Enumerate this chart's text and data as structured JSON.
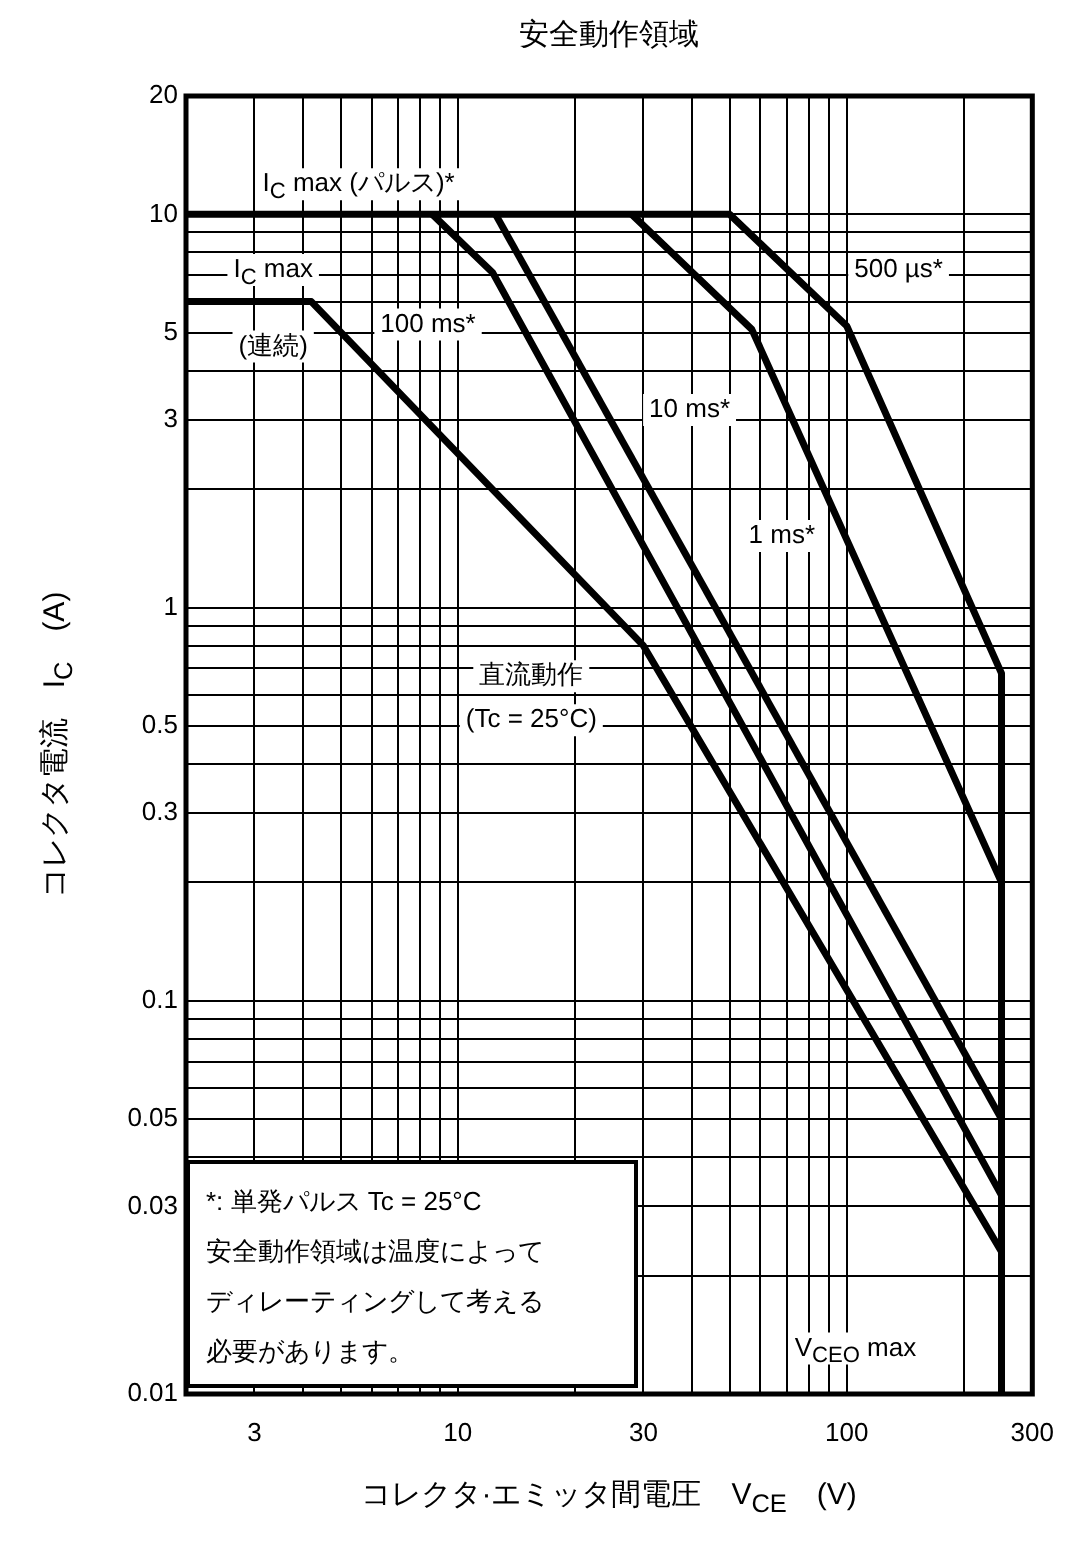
{
  "chart_data": {
    "type": "line",
    "title": "安全動作領域",
    "xlabel": "コレクタ·エミッタ間電圧　V$_{CE}$　(V)",
    "ylabel": "コレクタ電流　I$_{C}$　(A)",
    "log": "xy",
    "grid": true,
    "legend": false,
    "marker": "none",
    "line_style": "solid",
    "xlim": [
      2,
      300
    ],
    "ylim": [
      0.01,
      20
    ],
    "xticks": [
      {
        "value": 2,
        "label": null
      },
      3,
      {
        "value": 4,
        "label": null
      },
      {
        "value": 5,
        "label": null
      },
      {
        "value": 6,
        "label": null
      },
      {
        "value": 7,
        "label": null
      },
      {
        "value": 8,
        "label": null
      },
      {
        "value": 9,
        "label": null
      },
      10,
      {
        "value": 20,
        "label": null
      },
      30,
      {
        "value": 40,
        "label": null
      },
      {
        "value": 50,
        "label": null
      },
      {
        "value": 60,
        "label": null
      },
      {
        "value": 70,
        "label": null
      },
      {
        "value": 80,
        "label": null
      },
      {
        "value": 90,
        "label": null
      },
      100,
      {
        "value": 200,
        "label": null
      },
      300
    ],
    "yticks": [
      0.01,
      {
        "value": 0.02,
        "label": null
      },
      0.03,
      {
        "value": 0.04,
        "label": null
      },
      0.05,
      {
        "value": 0.06,
        "label": null
      },
      {
        "value": 0.07,
        "label": null
      },
      {
        "value": 0.08,
        "label": null
      },
      {
        "value": 0.09,
        "label": null
      },
      0.1,
      {
        "value": 0.2,
        "label": null
      },
      0.3,
      {
        "value": 0.4,
        "label": null
      },
      0.5,
      {
        "value": 0.6,
        "label": null
      },
      {
        "value": 0.7,
        "label": null
      },
      {
        "value": 0.8,
        "label": null
      },
      {
        "value": 0.9,
        "label": null
      },
      1,
      {
        "value": 2,
        "label": null
      },
      3,
      {
        "value": 4,
        "label": null
      },
      5,
      {
        "value": 6,
        "label": null
      },
      {
        "value": 7,
        "label": null
      },
      {
        "value": 8,
        "label": null
      },
      {
        "value": 9,
        "label": null
      },
      10,
      20
    ],
    "series": [
      {
        "color": "#000000",
        "x": [
          2,
          50,
          100,
          250,
          250
        ],
        "values": [
          10,
          10,
          5.2,
          0.68,
          0.01
        ]
      },
      {
        "color": "#000000",
        "x": [
          28,
          57,
          250
        ],
        "values": [
          10,
          5.1,
          0.2
        ]
      },
      {
        "color": "#000000",
        "x": [
          12.5,
          250
        ],
        "values": [
          10,
          0.05
        ]
      },
      {
        "color": "#000000",
        "x": [
          8.6,
          12.3,
          250
        ],
        "values": [
          10,
          7.1,
          0.032
        ]
      },
      {
        "color": "#000000",
        "x": [
          2,
          4.2,
          30,
          250
        ],
        "values": [
          6,
          6,
          0.8,
          0.023
        ]
      }
    ],
    "annotations": [
      "I$_{C}$ max (パルス)*",
      "I$_{C}$ max",
      "(連続)",
      "100 ms*",
      "10 ms*",
      "1 ms*",
      "500 µs*",
      "直流動作",
      "(Tc = 25°C)",
      "V$_{CEO}$ max",
      "*:  単発パルス Tc = 25°C",
      "安全動作領域は温度によって",
      "ディレーティングして考える",
      "必要があります。"
    ]
  }
}
